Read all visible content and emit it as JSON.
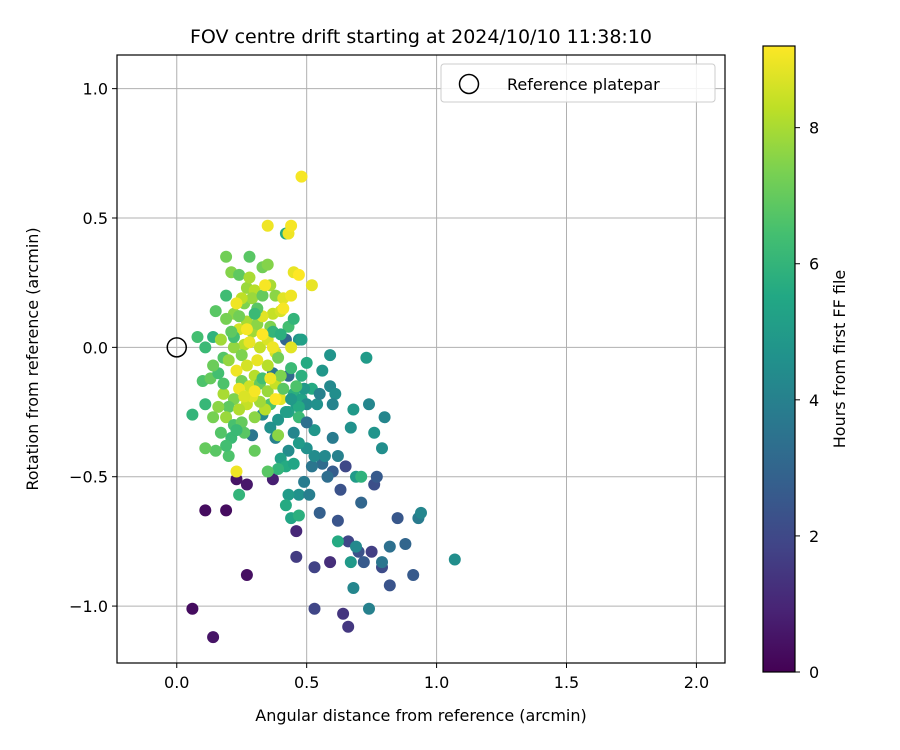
{
  "chart_data": {
    "type": "scatter",
    "title": "FOV centre drift starting at 2024/10/10 11:38:10",
    "xlabel": "Angular distance from reference (arcmin)",
    "ylabel": "Rotation from reference (arcmin)",
    "xlim": [
      -0.23,
      2.11
    ],
    "ylim": [
      -1.22,
      1.13
    ],
    "xticks": [
      0.0,
      0.5,
      1.0,
      1.5,
      2.0
    ],
    "xtick_labels": [
      "0.0",
      "0.5",
      "1.0",
      "1.5",
      "2.0"
    ],
    "yticks": [
      -1.0,
      -0.5,
      0.0,
      0.5,
      1.0
    ],
    "ytick_labels": [
      "−1.0",
      "−0.5",
      "0.0",
      "0.5",
      "1.0"
    ],
    "grid": true,
    "legend": {
      "position": "top-right",
      "entries": [
        "Reference platepar"
      ]
    },
    "reference_point": {
      "x": 0.0,
      "y": 0.0,
      "label": "Reference platepar"
    },
    "colorbar": {
      "label": "Hours from first FF file",
      "colormap": "viridis",
      "range": [
        0,
        9.2
      ],
      "ticks": [
        0,
        2,
        4,
        6,
        8
      ],
      "tick_labels": [
        "0",
        "2",
        "4",
        "6",
        "8"
      ]
    },
    "points": [
      {
        "x": 0.06,
        "y": -1.01,
        "h": 0.3
      },
      {
        "x": 0.14,
        "y": -1.12,
        "h": 0.5
      },
      {
        "x": 0.11,
        "y": -0.63,
        "h": 0.3
      },
      {
        "x": 0.19,
        "y": -0.63,
        "h": 0.3
      },
      {
        "x": 0.27,
        "y": -0.88,
        "h": 0.4
      },
      {
        "x": 0.27,
        "y": -0.53,
        "h": 0.6
      },
      {
        "x": 0.23,
        "y": -0.51,
        "h": 0.5
      },
      {
        "x": 0.37,
        "y": -0.51,
        "h": 0.8
      },
      {
        "x": 0.46,
        "y": -0.71,
        "h": 1.0
      },
      {
        "x": 0.46,
        "y": -0.81,
        "h": 1.6
      },
      {
        "x": 0.53,
        "y": -0.85,
        "h": 1.8
      },
      {
        "x": 0.53,
        "y": -1.01,
        "h": 1.9
      },
      {
        "x": 0.59,
        "y": -0.83,
        "h": 1.2
      },
      {
        "x": 0.64,
        "y": -1.03,
        "h": 1.4
      },
      {
        "x": 0.66,
        "y": -1.08,
        "h": 1.5
      },
      {
        "x": 0.66,
        "y": -0.75,
        "h": 1.9
      },
      {
        "x": 0.7,
        "y": -0.79,
        "h": 2.3
      },
      {
        "x": 0.72,
        "y": -0.83,
        "h": 2.6
      },
      {
        "x": 0.75,
        "y": -0.79,
        "h": 1.7
      },
      {
        "x": 0.79,
        "y": -0.85,
        "h": 2.1
      },
      {
        "x": 0.82,
        "y": -0.92,
        "h": 2.4
      },
      {
        "x": 0.79,
        "y": -0.83,
        "h": 3.6
      },
      {
        "x": 0.82,
        "y": -0.77,
        "h": 3.4
      },
      {
        "x": 0.88,
        "y": -0.76,
        "h": 3.0
      },
      {
        "x": 0.91,
        "y": -0.88,
        "h": 2.6
      },
      {
        "x": 0.85,
        "y": -0.66,
        "h": 2.5
      },
      {
        "x": 0.93,
        "y": -0.66,
        "h": 3.8
      },
      {
        "x": 0.94,
        "y": -0.64,
        "h": 4.2
      },
      {
        "x": 1.07,
        "y": -0.82,
        "h": 4.5
      },
      {
        "x": 0.55,
        "y": -0.64,
        "h": 2.8
      },
      {
        "x": 0.62,
        "y": -0.67,
        "h": 2.4
      },
      {
        "x": 0.68,
        "y": -0.93,
        "h": 4.2
      },
      {
        "x": 0.74,
        "y": -1.01,
        "h": 4.0
      },
      {
        "x": 0.69,
        "y": -0.77,
        "h": 4.3
      },
      {
        "x": 0.62,
        "y": -0.75,
        "h": 5.6
      },
      {
        "x": 0.67,
        "y": -0.83,
        "h": 4.9
      },
      {
        "x": 0.71,
        "y": -0.6,
        "h": 3.0
      },
      {
        "x": 0.76,
        "y": -0.53,
        "h": 2.2
      },
      {
        "x": 0.77,
        "y": -0.5,
        "h": 2.6
      },
      {
        "x": 0.69,
        "y": -0.5,
        "h": 5.0
      },
      {
        "x": 0.65,
        "y": -0.46,
        "h": 2.0
      },
      {
        "x": 0.63,
        "y": -0.55,
        "h": 2.3
      },
      {
        "x": 0.6,
        "y": -0.48,
        "h": 2.7
      },
      {
        "x": 0.56,
        "y": -0.45,
        "h": 3.2
      },
      {
        "x": 0.52,
        "y": -0.46,
        "h": 3.6
      },
      {
        "x": 0.49,
        "y": -0.52,
        "h": 3.8
      },
      {
        "x": 0.47,
        "y": -0.57,
        "h": 4.6
      },
      {
        "x": 0.51,
        "y": -0.57,
        "h": 3.9
      },
      {
        "x": 0.43,
        "y": -0.57,
        "h": 5.0
      },
      {
        "x": 0.42,
        "y": -0.61,
        "h": 5.6
      },
      {
        "x": 0.44,
        "y": -0.66,
        "h": 5.4
      },
      {
        "x": 0.47,
        "y": -0.65,
        "h": 5.8
      },
      {
        "x": 0.53,
        "y": -0.42,
        "h": 4.4
      },
      {
        "x": 0.5,
        "y": -0.39,
        "h": 4.6
      },
      {
        "x": 0.53,
        "y": -0.32,
        "h": 4.8
      },
      {
        "x": 0.47,
        "y": -0.37,
        "h": 5.0
      },
      {
        "x": 0.45,
        "y": -0.33,
        "h": 4.2
      },
      {
        "x": 0.43,
        "y": -0.4,
        "h": 4.4
      },
      {
        "x": 0.4,
        "y": -0.43,
        "h": 5.2
      },
      {
        "x": 0.42,
        "y": -0.46,
        "h": 5.6
      },
      {
        "x": 0.39,
        "y": -0.47,
        "h": 6.0
      },
      {
        "x": 0.45,
        "y": -0.45,
        "h": 5.4
      },
      {
        "x": 0.38,
        "y": -0.35,
        "h": 4.0
      },
      {
        "x": 0.39,
        "y": -0.28,
        "h": 4.8
      },
      {
        "x": 0.43,
        "y": -0.25,
        "h": 5.4
      },
      {
        "x": 0.46,
        "y": -0.22,
        "h": 5.0
      },
      {
        "x": 0.45,
        "y": -0.18,
        "h": 5.8
      },
      {
        "x": 0.48,
        "y": -0.2,
        "h": 5.3
      },
      {
        "x": 0.52,
        "y": -0.16,
        "h": 5.6
      },
      {
        "x": 0.49,
        "y": -0.16,
        "h": 4.9
      },
      {
        "x": 0.5,
        "y": -0.22,
        "h": 4.4
      },
      {
        "x": 0.54,
        "y": -0.22,
        "h": 4.6
      },
      {
        "x": 0.56,
        "y": -0.09,
        "h": 4.8
      },
      {
        "x": 0.59,
        "y": -0.15,
        "h": 4.3
      },
      {
        "x": 0.61,
        "y": -0.18,
        "h": 4.5
      },
      {
        "x": 0.6,
        "y": -0.22,
        "h": 4.1
      },
      {
        "x": 0.59,
        "y": -0.03,
        "h": 4.7
      },
      {
        "x": 0.68,
        "y": -0.24,
        "h": 4.9
      },
      {
        "x": 0.74,
        "y": -0.22,
        "h": 4.2
      },
      {
        "x": 0.73,
        "y": -0.04,
        "h": 5.0
      },
      {
        "x": 0.67,
        "y": -0.31,
        "h": 4.6
      },
      {
        "x": 0.6,
        "y": -0.35,
        "h": 3.8
      },
      {
        "x": 0.62,
        "y": -0.42,
        "h": 4.0
      },
      {
        "x": 0.76,
        "y": -0.33,
        "h": 4.7
      },
      {
        "x": 0.8,
        "y": -0.27,
        "h": 4.2
      },
      {
        "x": 0.79,
        "y": -0.39,
        "h": 4.5
      },
      {
        "x": 0.71,
        "y": -0.5,
        "h": 5.9
      },
      {
        "x": 0.29,
        "y": -0.34,
        "h": 3.6
      },
      {
        "x": 0.36,
        "y": -0.31,
        "h": 4.6
      },
      {
        "x": 0.33,
        "y": -0.26,
        "h": 4.3
      },
      {
        "x": 0.37,
        "y": -0.1,
        "h": 3.6
      },
      {
        "x": 0.43,
        "y": -0.11,
        "h": 3.2
      },
      {
        "x": 0.42,
        "y": 0.03,
        "h": 3.0
      },
      {
        "x": 0.47,
        "y": 0.03,
        "h": 4.8
      },
      {
        "x": 0.47,
        "y": -0.23,
        "h": 5.6
      },
      {
        "x": 0.47,
        "y": -0.27,
        "h": 6.2
      },
      {
        "x": 0.35,
        "y": -0.48,
        "h": 6.8
      },
      {
        "x": 0.39,
        "y": -0.34,
        "h": 7.6
      },
      {
        "x": 0.3,
        "y": -0.4,
        "h": 7.0
      },
      {
        "x": 0.24,
        "y": -0.57,
        "h": 6.0
      },
      {
        "x": 0.23,
        "y": -0.48,
        "h": 9.0
      },
      {
        "x": 0.2,
        "y": -0.42,
        "h": 6.6
      },
      {
        "x": 0.21,
        "y": -0.35,
        "h": 6.2
      },
      {
        "x": 0.19,
        "y": -0.38,
        "h": 6.4
      },
      {
        "x": 0.15,
        "y": -0.4,
        "h": 6.8
      },
      {
        "x": 0.11,
        "y": -0.39,
        "h": 7.0
      },
      {
        "x": 0.14,
        "y": -0.27,
        "h": 7.3
      },
      {
        "x": 0.11,
        "y": -0.22,
        "h": 6.1
      },
      {
        "x": 0.06,
        "y": -0.26,
        "h": 6.0
      },
      {
        "x": 0.1,
        "y": -0.13,
        "h": 6.6
      },
      {
        "x": 0.13,
        "y": -0.12,
        "h": 7.0
      },
      {
        "x": 0.16,
        "y": -0.1,
        "h": 6.4
      },
      {
        "x": 0.14,
        "y": -0.07,
        "h": 7.1
      },
      {
        "x": 0.18,
        "y": -0.04,
        "h": 6.7
      },
      {
        "x": 0.11,
        "y": 0.0,
        "h": 6.2
      },
      {
        "x": 0.08,
        "y": 0.04,
        "h": 6.4
      },
      {
        "x": 0.14,
        "y": 0.04,
        "h": 5.9
      },
      {
        "x": 0.15,
        "y": 0.14,
        "h": 6.8
      },
      {
        "x": 0.19,
        "y": 0.2,
        "h": 6.3
      },
      {
        "x": 0.22,
        "y": 0.13,
        "h": 7.6
      },
      {
        "x": 0.19,
        "y": 0.35,
        "h": 7.2
      },
      {
        "x": 0.21,
        "y": 0.29,
        "h": 7.5
      },
      {
        "x": 0.24,
        "y": 0.28,
        "h": 6.9
      },
      {
        "x": 0.28,
        "y": 0.35,
        "h": 6.8
      },
      {
        "x": 0.27,
        "y": 0.23,
        "h": 7.8
      },
      {
        "x": 0.3,
        "y": 0.22,
        "h": 8.2
      },
      {
        "x": 0.33,
        "y": 0.31,
        "h": 7.2
      },
      {
        "x": 0.35,
        "y": 0.32,
        "h": 7.5
      },
      {
        "x": 0.36,
        "y": 0.24,
        "h": 8.0
      },
      {
        "x": 0.38,
        "y": 0.2,
        "h": 7.6
      },
      {
        "x": 0.37,
        "y": 0.13,
        "h": 8.4
      },
      {
        "x": 0.41,
        "y": 0.19,
        "h": 8.8
      },
      {
        "x": 0.44,
        "y": 0.2,
        "h": 9.0
      },
      {
        "x": 0.4,
        "y": 0.14,
        "h": 8.6
      },
      {
        "x": 0.43,
        "y": 0.08,
        "h": 6.4
      },
      {
        "x": 0.42,
        "y": 0.44,
        "h": 5.6
      },
      {
        "x": 0.43,
        "y": 0.44,
        "h": 9.0
      },
      {
        "x": 0.44,
        "y": 0.47,
        "h": 9.1
      },
      {
        "x": 0.35,
        "y": 0.47,
        "h": 9.0
      },
      {
        "x": 0.48,
        "y": 0.66,
        "h": 9.1
      },
      {
        "x": 0.45,
        "y": 0.29,
        "h": 8.9
      },
      {
        "x": 0.47,
        "y": 0.28,
        "h": 9.2
      },
      {
        "x": 0.52,
        "y": 0.24,
        "h": 8.9
      },
      {
        "x": 0.48,
        "y": 0.03,
        "h": 5.2
      },
      {
        "x": 0.44,
        "y": 0.0,
        "h": 8.8
      },
      {
        "x": 0.38,
        "y": -0.02,
        "h": 8.6
      },
      {
        "x": 0.32,
        "y": 0.0,
        "h": 8.4
      },
      {
        "x": 0.29,
        "y": 0.06,
        "h": 7.9
      },
      {
        "x": 0.26,
        "y": 0.01,
        "h": 8.2
      },
      {
        "x": 0.22,
        "y": 0.0,
        "h": 7.7
      },
      {
        "x": 0.24,
        "y": 0.07,
        "h": 8.6
      },
      {
        "x": 0.27,
        "y": 0.1,
        "h": 8.0
      },
      {
        "x": 0.31,
        "y": 0.09,
        "h": 7.6
      },
      {
        "x": 0.33,
        "y": 0.12,
        "h": 8.8
      },
      {
        "x": 0.25,
        "y": -0.03,
        "h": 7.4
      },
      {
        "x": 0.27,
        "y": -0.07,
        "h": 8.6
      },
      {
        "x": 0.3,
        "y": -0.11,
        "h": 8.2
      },
      {
        "x": 0.23,
        "y": -0.09,
        "h": 9.0
      },
      {
        "x": 0.25,
        "y": -0.13,
        "h": 7.2
      },
      {
        "x": 0.28,
        "y": -0.15,
        "h": 8.5
      },
      {
        "x": 0.32,
        "y": -0.14,
        "h": 7.0
      },
      {
        "x": 0.35,
        "y": -0.17,
        "h": 7.8
      },
      {
        "x": 0.38,
        "y": -0.14,
        "h": 8.4
      },
      {
        "x": 0.4,
        "y": -0.2,
        "h": 8.8
      },
      {
        "x": 0.36,
        "y": -0.22,
        "h": 6.6
      },
      {
        "x": 0.34,
        "y": -0.24,
        "h": 8.2
      },
      {
        "x": 0.3,
        "y": -0.27,
        "h": 7.6
      },
      {
        "x": 0.27,
        "y": -0.22,
        "h": 8.4
      },
      {
        "x": 0.24,
        "y": -0.16,
        "h": 9.0
      },
      {
        "x": 0.22,
        "y": -0.2,
        "h": 7.4
      },
      {
        "x": 0.2,
        "y": -0.23,
        "h": 6.9
      },
      {
        "x": 0.18,
        "y": -0.18,
        "h": 8.0
      },
      {
        "x": 0.19,
        "y": -0.27,
        "h": 7.8
      },
      {
        "x": 0.22,
        "y": -0.3,
        "h": 6.5
      },
      {
        "x": 0.25,
        "y": -0.29,
        "h": 7.0
      },
      {
        "x": 0.26,
        "y": -0.33,
        "h": 6.8
      },
      {
        "x": 0.23,
        "y": -0.32,
        "h": 6.2
      },
      {
        "x": 0.17,
        "y": -0.33,
        "h": 6.7
      },
      {
        "x": 0.16,
        "y": -0.23,
        "h": 7.6
      },
      {
        "x": 0.18,
        "y": -0.14,
        "h": 6.6
      },
      {
        "x": 0.2,
        "y": -0.05,
        "h": 7.7
      },
      {
        "x": 0.22,
        "y": 0.04,
        "h": 6.4
      },
      {
        "x": 0.24,
        "y": 0.12,
        "h": 7.2
      },
      {
        "x": 0.26,
        "y": 0.17,
        "h": 7.4
      },
      {
        "x": 0.29,
        "y": 0.19,
        "h": 7.8
      },
      {
        "x": 0.31,
        "y": 0.15,
        "h": 6.8
      },
      {
        "x": 0.33,
        "y": 0.2,
        "h": 7.0
      },
      {
        "x": 0.34,
        "y": 0.24,
        "h": 9.1
      },
      {
        "x": 0.36,
        "y": 0.08,
        "h": 7.4
      },
      {
        "x": 0.35,
        "y": 0.03,
        "h": 8.7
      },
      {
        "x": 0.37,
        "y": 0.06,
        "h": 6.0
      },
      {
        "x": 0.39,
        "y": -0.04,
        "h": 7.2
      },
      {
        "x": 0.35,
        "y": -0.07,
        "h": 8.2
      },
      {
        "x": 0.33,
        "y": -0.12,
        "h": 6.4
      },
      {
        "x": 0.4,
        "y": -0.11,
        "h": 7.4
      },
      {
        "x": 0.41,
        "y": -0.16,
        "h": 6.8
      },
      {
        "x": 0.32,
        "y": -0.21,
        "h": 7.9
      },
      {
        "x": 0.29,
        "y": -0.19,
        "h": 8.8
      },
      {
        "x": 0.24,
        "y": -0.24,
        "h": 8.1
      },
      {
        "x": 0.28,
        "y": 0.02,
        "h": 8.9
      },
      {
        "x": 0.3,
        "y": 0.13,
        "h": 6.2
      },
      {
        "x": 0.21,
        "y": 0.06,
        "h": 6.9
      },
      {
        "x": 0.25,
        "y": 0.19,
        "h": 8.3
      },
      {
        "x": 0.19,
        "y": 0.11,
        "h": 7.3
      },
      {
        "x": 0.17,
        "y": 0.03,
        "h": 7.9
      },
      {
        "x": 0.28,
        "y": 0.27,
        "h": 8.0
      },
      {
        "x": 0.37,
        "y": 0.0,
        "h": 9.0
      },
      {
        "x": 0.31,
        "y": -0.05,
        "h": 8.9
      },
      {
        "x": 0.27,
        "y": 0.07,
        "h": 9.1
      },
      {
        "x": 0.33,
        "y": 0.05,
        "h": 9.2
      },
      {
        "x": 0.36,
        "y": -0.12,
        "h": 9.0
      },
      {
        "x": 0.38,
        "y": -0.2,
        "h": 9.2
      },
      {
        "x": 0.3,
        "y": -0.17,
        "h": 9.1
      },
      {
        "x": 0.26,
        "y": -0.19,
        "h": 8.7
      },
      {
        "x": 0.23,
        "y": 0.17,
        "h": 9.0
      },
      {
        "x": 0.41,
        "y": 0.15,
        "h": 9.1
      },
      {
        "x": 0.45,
        "y": 0.11,
        "h": 6.0
      },
      {
        "x": 0.4,
        "y": 0.05,
        "h": 5.8
      },
      {
        "x": 0.44,
        "y": -0.08,
        "h": 6.2
      },
      {
        "x": 0.46,
        "y": -0.15,
        "h": 6.6
      },
      {
        "x": 0.5,
        "y": -0.06,
        "h": 5.6
      },
      {
        "x": 0.48,
        "y": -0.11,
        "h": 5.8
      },
      {
        "x": 0.44,
        "y": -0.2,
        "h": 4.9
      },
      {
        "x": 0.42,
        "y": -0.25,
        "h": 5.1
      },
      {
        "x": 0.5,
        "y": -0.29,
        "h": 3.4
      },
      {
        "x": 0.55,
        "y": -0.18,
        "h": 4.0
      },
      {
        "x": 0.58,
        "y": -0.5,
        "h": 3.3
      },
      {
        "x": 0.57,
        "y": -0.42,
        "h": 4.3
      }
    ]
  }
}
